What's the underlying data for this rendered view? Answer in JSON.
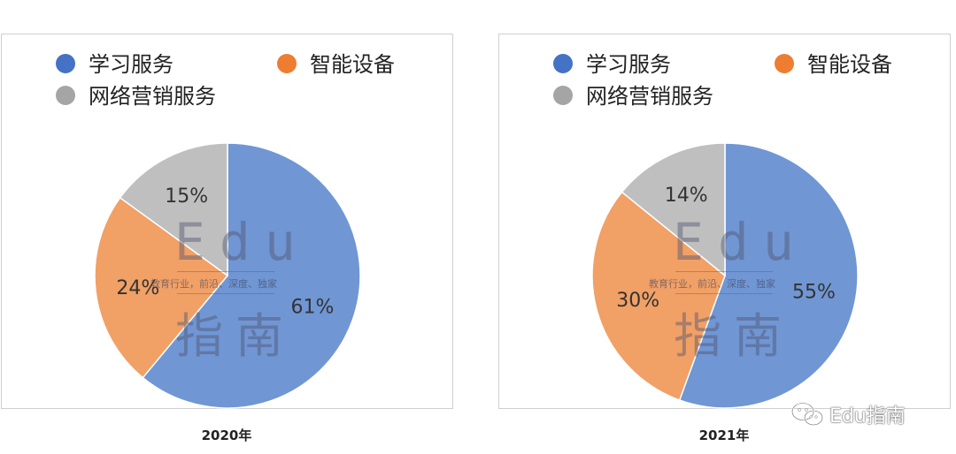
{
  "chart_data": [
    {
      "type": "pie",
      "title": "2020年",
      "legend_position": "top",
      "categories": [
        "学习服务",
        "智能设备",
        "网络营销服务"
      ],
      "values": [
        61,
        24,
        15
      ],
      "labels": [
        "61%",
        "24%",
        "15%"
      ],
      "colors": [
        "#4472c4",
        "#ed7d31",
        "#a5a5a5"
      ]
    },
    {
      "type": "pie",
      "title": "2021年",
      "legend_position": "top",
      "categories": [
        "学习服务",
        "智能设备",
        "网络营销服务"
      ],
      "values": [
        55,
        30,
        14
      ],
      "labels": [
        "55%",
        "30%",
        "14%"
      ],
      "colors": [
        "#4472c4",
        "#ed7d31",
        "#a5a5a5"
      ]
    }
  ],
  "watermark": {
    "edu": "Edu",
    "tagline": "教育行业，前沿、深度、独家",
    "chinese": "指南"
  },
  "brand": {
    "icon": "wechat-icon",
    "text": "Edu指南"
  }
}
